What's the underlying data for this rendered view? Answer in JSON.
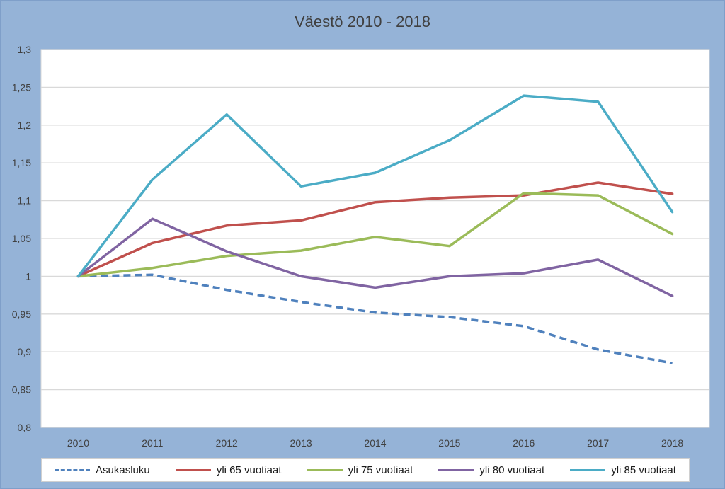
{
  "chart_data": {
    "type": "line",
    "title": "Väestö 2010 - 2018",
    "xlabel": "",
    "ylabel": "",
    "categories": [
      "2010",
      "2011",
      "2012",
      "2013",
      "2014",
      "2015",
      "2016",
      "2017",
      "2018"
    ],
    "ylim": [
      0.8,
      1.3
    ],
    "yticks": [
      "0,8",
      "0,85",
      "0,9",
      "0,95",
      "1",
      "1,05",
      "1,1",
      "1,15",
      "1,2",
      "1,25",
      "1,3"
    ],
    "ytick_values": [
      0.8,
      0.85,
      0.9,
      0.95,
      1.0,
      1.05,
      1.1,
      1.15,
      1.2,
      1.25,
      1.3
    ],
    "grid": true,
    "legend_position": "bottom",
    "series": [
      {
        "name": "Asukasluku",
        "color": "#4f81bd",
        "dashed": true,
        "values": [
          1.0,
          1.002,
          0.982,
          0.966,
          0.952,
          0.946,
          0.934,
          0.903,
          0.885
        ]
      },
      {
        "name": "yli 65 vuotiaat",
        "color": "#c0504d",
        "dashed": false,
        "values": [
          1.0,
          1.044,
          1.067,
          1.074,
          1.098,
          1.104,
          1.107,
          1.124,
          1.109
        ]
      },
      {
        "name": "yli 75 vuotiaat",
        "color": "#9bbb59",
        "dashed": false,
        "values": [
          1.0,
          1.011,
          1.027,
          1.034,
          1.052,
          1.04,
          1.11,
          1.107,
          1.056
        ]
      },
      {
        "name": "yli 80 vuotiaat",
        "color": "#8064a2",
        "dashed": false,
        "values": [
          1.0,
          1.076,
          1.033,
          1.0,
          0.985,
          1.0,
          1.004,
          1.022,
          0.974
        ]
      },
      {
        "name": "yli 85 vuotiaat",
        "color": "#4bacc6",
        "dashed": false,
        "values": [
          1.0,
          1.128,
          1.214,
          1.119,
          1.137,
          1.18,
          1.239,
          1.231,
          1.085
        ]
      }
    ]
  }
}
